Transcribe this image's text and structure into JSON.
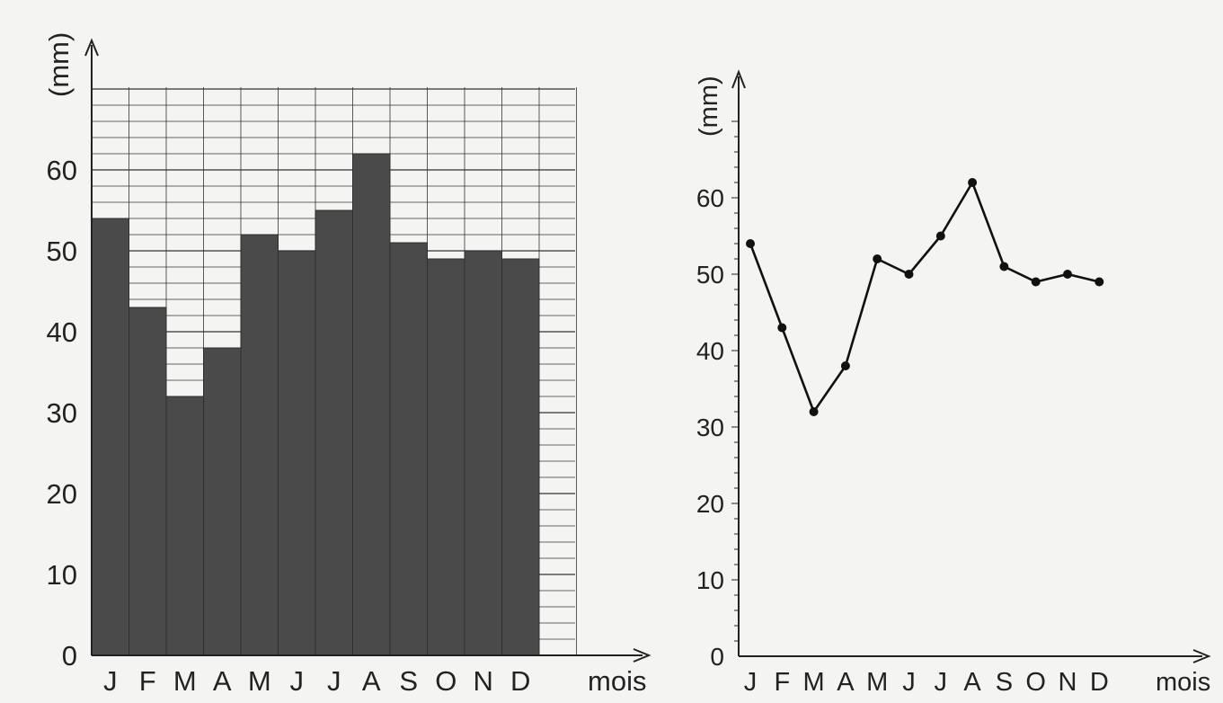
{
  "chart_data": [
    {
      "type": "bar",
      "categories": [
        "J",
        "F",
        "M",
        "A",
        "M",
        "J",
        "J",
        "A",
        "S",
        "O",
        "N",
        "D"
      ],
      "values": [
        54,
        43,
        32,
        38,
        52,
        50,
        55,
        62,
        51,
        49,
        50,
        49
      ],
      "ylabel": "(mm)",
      "xlabel": "mois",
      "ylim": [
        0,
        70
      ],
      "yticks": [
        "0",
        "10",
        "20",
        "30",
        "40",
        "50",
        "60"
      ],
      "grid": true,
      "colors": {
        "bar": "#4a4a4a",
        "grid": "#333333",
        "axis": "#222222"
      }
    },
    {
      "type": "line",
      "categories": [
        "J",
        "F",
        "M",
        "A",
        "M",
        "J",
        "J",
        "A",
        "S",
        "O",
        "N",
        "D"
      ],
      "values": [
        54,
        43,
        32,
        38,
        52,
        50,
        55,
        62,
        51,
        49,
        50,
        49
      ],
      "ylabel": "(mm)",
      "xlabel": "mois",
      "ylim": [
        0,
        70
      ],
      "yticks": [
        "0",
        "10",
        "20",
        "30",
        "40",
        "50",
        "60"
      ],
      "grid": false,
      "colors": {
        "line": "#111111",
        "marker": "#111111",
        "axis": "#222222"
      }
    }
  ]
}
